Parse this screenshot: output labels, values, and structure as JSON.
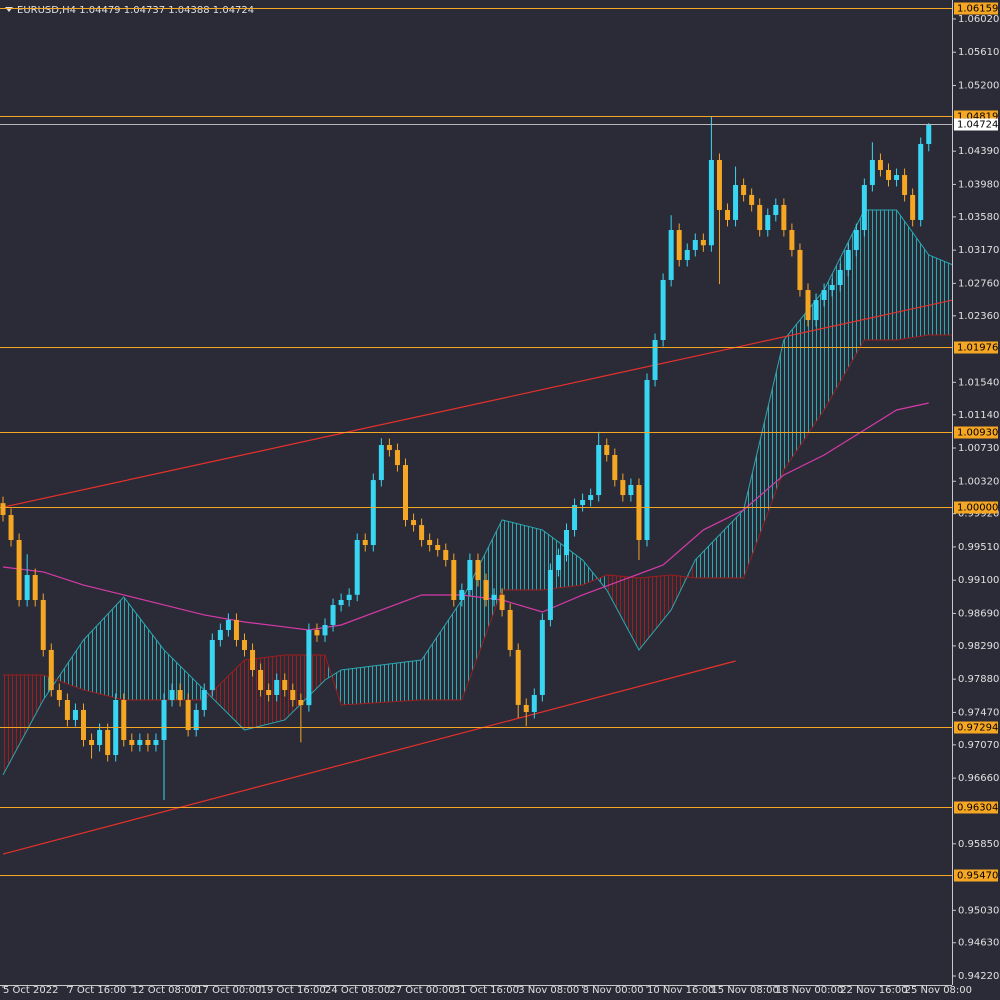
{
  "chart_data": {
    "type": "candlestick",
    "title": "EURUSD,H4  1.04479 1.04737 1.04388 1.04724",
    "up_color": "#38d6f2",
    "down_color": "#f5a623",
    "ylim": [
      0.94109,
      1.06254
    ],
    "yticks": [
      {
        "value": 1.0602,
        "label": "1.06020"
      },
      {
        "value": 1.0561,
        "label": "1.05610"
      },
      {
        "value": 1.052,
        "label": "1.05200"
      },
      {
        "value": 1.0439,
        "label": "1.04390"
      },
      {
        "value": 1.0398,
        "label": "1.03980"
      },
      {
        "value": 1.0358,
        "label": "1.03580"
      },
      {
        "value": 1.0317,
        "label": "1.03170"
      },
      {
        "value": 1.0276,
        "label": "1.02760"
      },
      {
        "value": 1.0236,
        "label": "1.02360"
      },
      {
        "value": 1.0154,
        "label": "1.01540"
      },
      {
        "value": 1.0114,
        "label": "1.01140"
      },
      {
        "value": 1.0073,
        "label": "1.00730"
      },
      {
        "value": 1.0032,
        "label": "1.00320"
      },
      {
        "value": 0.9992,
        "label": "0.99920"
      },
      {
        "value": 0.9951,
        "label": "0.99510"
      },
      {
        "value": 0.991,
        "label": "0.99100"
      },
      {
        "value": 0.9869,
        "label": "0.98690"
      },
      {
        "value": 0.9829,
        "label": "0.98290"
      },
      {
        "value": 0.9788,
        "label": "0.97880"
      },
      {
        "value": 0.9747,
        "label": "0.97470"
      },
      {
        "value": 0.9707,
        "label": "0.97070"
      },
      {
        "value": 0.9666,
        "label": "0.96660"
      },
      {
        "value": 0.9585,
        "label": "0.95850"
      },
      {
        "value": 0.9503,
        "label": "0.95030"
      },
      {
        "value": 0.9463,
        "label": "0.94630"
      },
      {
        "value": 0.9422,
        "label": "0.94220"
      }
    ],
    "levels": [
      {
        "value": 1.06159,
        "label": "1.06159"
      },
      {
        "value": 1.04819,
        "label": "1.04819"
      },
      {
        "value": 1.01976,
        "label": "1.01976"
      },
      {
        "value": 1.0093,
        "label": "1.00930"
      },
      {
        "value": 1.0,
        "label": "1.00000"
      },
      {
        "value": 0.97294,
        "label": "0.97294"
      },
      {
        "value": 0.96304,
        "label": "0.96304"
      },
      {
        "value": 0.9547,
        "label": "0.95470"
      }
    ],
    "level_color": "#f5a623",
    "bid": {
      "value": 1.04724,
      "label": "1.04724"
    },
    "categories": [
      "5 Oct 2022",
      null,
      null,
      null,
      null,
      null,
      null,
      null,
      "7 Oct 16:00",
      null,
      null,
      null,
      null,
      null,
      null,
      null,
      "12 Oct 08:00",
      null,
      null,
      null,
      null,
      null,
      null,
      null,
      "17 Oct 00:00",
      null,
      null,
      null,
      null,
      null,
      null,
      null,
      "19 Oct 16:00",
      null,
      null,
      null,
      null,
      null,
      null,
      null,
      "24 Oct 08:00",
      null,
      null,
      null,
      null,
      null,
      null,
      null,
      "27 Oct 00:00",
      null,
      null,
      null,
      null,
      null,
      null,
      null,
      "31 Oct 16:00",
      null,
      null,
      null,
      null,
      null,
      null,
      null,
      "3 Nov 08:00",
      null,
      null,
      null,
      null,
      null,
      null,
      null,
      "8 Nov 00:00",
      null,
      null,
      null,
      null,
      null,
      null,
      null,
      "10 Nov 16:00",
      null,
      null,
      null,
      null,
      null,
      null,
      null,
      "15 Nov 08:00",
      null,
      null,
      null,
      null,
      null,
      null,
      null,
      "18 Nov 00:00",
      null,
      null,
      null,
      null,
      null,
      null,
      null,
      "22 Nov 16:00",
      null,
      null,
      null,
      null,
      null,
      null,
      null,
      "25 Nov 08:00",
      null,
      null,
      null
    ],
    "open": [
      1.0005,
      0.99904,
      0.99596,
      0.98856,
      0.99164,
      0.98856,
      0.9824,
      0.97746,
      0.97623,
      0.97377,
      0.975,
      0.9713,
      0.97068,
      0.97253,
      0.96945,
      0.97623,
      0.9713,
      0.97068,
      0.9713,
      0.97068,
      0.9713,
      0.97623,
      0.97746,
      0.97623,
      0.97253,
      0.975,
      0.97746,
      0.98363,
      0.98486,
      0.9861,
      0.98363,
      0.9824,
      0.97993,
      0.97746,
      0.97685,
      0.9787,
      0.97746,
      0.97623,
      0.9756,
      0.98486,
      0.9842,
      0.98548,
      0.98794,
      0.98856,
      0.9892,
      0.99596,
      0.99534,
      1.00335,
      1.00767,
      1.00705,
      1.0052,
      0.99842,
      0.9978,
      0.99596,
      0.99534,
      0.99472,
      0.99349,
      0.98856,
      0.98979,
      0.99349,
      0.99102,
      0.98856,
      0.9892,
      0.98733,
      0.9824,
      0.97562,
      0.97475,
      0.97685,
      0.9861,
      0.99226,
      0.9941,
      0.99719,
      1.00027,
      1.00089,
      1.0015,
      1.00767,
      1.00644,
      1.00335,
      1.0015,
      1.00274,
      0.99596,
      1.01569,
      1.02062,
      1.02802,
      1.03418,
      1.03048,
      1.03172,
      1.03295,
      1.0323,
      1.04281,
      1.03665,
      1.03542,
      1.03973,
      1.0385,
      1.03727,
      1.03418,
      1.03603,
      1.03727,
      1.03418,
      1.03172,
      1.02678,
      1.02308,
      1.02555,
      1.02678,
      1.0274,
      1.02925,
      1.03172,
      1.03418,
      1.03973,
      1.04281,
      1.04158,
      1.04035,
      1.04096,
      1.0385,
      1.03542,
      1.04479
    ],
    "high": [
      1.0013,
      0.99984,
      0.99676,
      0.9942,
      0.99244,
      0.98936,
      0.9832,
      0.97826,
      0.97703,
      0.9758,
      0.9758,
      0.9721,
      0.97333,
      0.97333,
      0.97703,
      0.97703,
      0.9721,
      0.9721,
      0.9721,
      0.9721,
      0.97703,
      0.97826,
      0.97826,
      0.97703,
      0.9758,
      0.97826,
      0.98443,
      0.98566,
      0.9869,
      0.9869,
      0.98443,
      0.9832,
      0.98073,
      0.97826,
      0.9795,
      0.9795,
      0.97826,
      0.97703,
      0.98566,
      0.98566,
      0.98628,
      0.98874,
      0.98936,
      0.99,
      0.99676,
      0.99676,
      1.00415,
      1.0085,
      1.00847,
      1.00785,
      1.006,
      0.99922,
      0.9986,
      0.99676,
      0.99614,
      0.99552,
      0.99429,
      0.99059,
      0.99429,
      0.99429,
      0.99182,
      0.99,
      0.99,
      0.98813,
      0.9832,
      0.97642,
      0.97765,
      0.9869,
      0.99306,
      0.9949,
      0.99799,
      1.00107,
      1.00169,
      1.0023,
      1.0093,
      1.00847,
      1.00724,
      1.00415,
      1.00354,
      1.00354,
      1.01649,
      1.02142,
      1.02882,
      1.036,
      1.03498,
      1.03252,
      1.03375,
      1.03375,
      1.04812,
      1.04361,
      1.03745,
      1.042,
      1.04053,
      1.0393,
      1.03807,
      1.03683,
      1.03807,
      1.03807,
      1.03498,
      1.03252,
      1.02758,
      1.02635,
      1.02758,
      1.0282,
      1.03005,
      1.03252,
      1.03498,
      1.04053,
      1.045,
      1.04361,
      1.04238,
      1.04176,
      1.04176,
      1.0393,
      1.04559,
      1.04737
    ],
    "low": [
      0.99824,
      0.99516,
      0.98776,
      0.98776,
      0.98776,
      0.9816,
      0.97666,
      0.97543,
      0.97297,
      0.97297,
      0.9705,
      0.969,
      0.96988,
      0.96865,
      0.96865,
      0.9705,
      0.96988,
      0.96988,
      0.96988,
      0.96988,
      0.9639,
      0.97543,
      0.97543,
      0.97173,
      0.97173,
      0.9742,
      0.97666,
      0.98283,
      0.98406,
      0.98283,
      0.9816,
      0.97913,
      0.97666,
      0.97605,
      0.97605,
      0.97666,
      0.97543,
      0.971,
      0.9748,
      0.9834,
      0.9834,
      0.98468,
      0.98714,
      0.98776,
      0.9884,
      0.99454,
      0.99454,
      1.00255,
      1.00625,
      1.0044,
      0.99762,
      0.997,
      0.99516,
      0.99454,
      0.99392,
      0.99269,
      0.98776,
      0.98776,
      0.98899,
      0.99022,
      0.98776,
      0.98776,
      0.98653,
      0.9816,
      0.974,
      0.973,
      0.97395,
      0.97605,
      0.9853,
      0.99146,
      0.9933,
      0.99639,
      0.99947,
      1.00009,
      1.0007,
      1.00564,
      1.00255,
      1.0007,
      1.0007,
      0.9935,
      0.99516,
      1.01489,
      1.01982,
      1.02722,
      1.02968,
      1.02968,
      1.03092,
      1.0315,
      1.0315,
      1.0275,
      1.03462,
      1.03462,
      1.0377,
      1.03647,
      1.03338,
      1.03338,
      1.03523,
      1.03338,
      1.03092,
      1.02598,
      1.02228,
      1.02228,
      1.02475,
      1.02598,
      1.0266,
      1.02845,
      1.03092,
      1.03338,
      1.03893,
      1.04078,
      1.03955,
      1.03955,
      1.0377,
      1.03462,
      1.03462,
      1.04388
    ],
    "close": [
      0.99904,
      0.99596,
      0.98856,
      0.99164,
      0.98856,
      0.9824,
      0.97746,
      0.97623,
      0.97377,
      0.975,
      0.9713,
      0.97068,
      0.97253,
      0.96945,
      0.97623,
      0.9713,
      0.97068,
      0.9713,
      0.97068,
      0.9713,
      0.97623,
      0.97746,
      0.97623,
      0.97253,
      0.975,
      0.97746,
      0.98363,
      0.98486,
      0.9861,
      0.98363,
      0.9824,
      0.97993,
      0.97746,
      0.97685,
      0.9787,
      0.97746,
      0.97623,
      0.9756,
      0.98486,
      0.9842,
      0.98548,
      0.98794,
      0.98856,
      0.9892,
      0.99596,
      0.99534,
      1.00335,
      1.00767,
      1.00705,
      1.0052,
      0.99842,
      0.9978,
      0.99596,
      0.99534,
      0.99472,
      0.99349,
      0.98856,
      0.98979,
      0.99349,
      0.99102,
      0.98856,
      0.9892,
      0.98733,
      0.9824,
      0.97562,
      0.97475,
      0.97685,
      0.9861,
      0.99226,
      0.9941,
      0.99719,
      1.00027,
      1.00089,
      1.0015,
      1.00767,
      1.00644,
      1.00335,
      1.0015,
      1.00274,
      0.99596,
      1.01569,
      1.02062,
      1.02802,
      1.03418,
      1.03048,
      1.03172,
      1.03295,
      1.0323,
      1.04281,
      1.03665,
      1.03542,
      1.03973,
      1.0385,
      1.03727,
      1.03418,
      1.03603,
      1.03727,
      1.03418,
      1.03172,
      1.02678,
      1.02308,
      1.02555,
      1.02678,
      1.0274,
      1.02925,
      1.03172,
      1.03418,
      1.03973,
      1.04281,
      1.04158,
      1.04035,
      1.04096,
      1.0385,
      1.03542,
      1.04479,
      1.04724
    ],
    "cloud": {
      "x": [
        0,
        5,
        10,
        15,
        20,
        25,
        30,
        35,
        40,
        42,
        52,
        57,
        62,
        67,
        72,
        75,
        79,
        83,
        86,
        92,
        97,
        102,
        107,
        111,
        115,
        118
      ],
      "span_a": [
        0.96699,
        0.97623,
        0.98363,
        0.98893,
        0.9824,
        0.97747,
        0.97253,
        0.97377,
        0.9787,
        0.97993,
        0.98116,
        0.98856,
        0.99843,
        0.9972,
        0.9935,
        0.9898,
        0.9824,
        0.98733,
        0.9935,
        0.99966,
        1.02062,
        1.02679,
        1.03665,
        1.03665,
        1.0311,
        1.02987
      ],
      "span_b": [
        0.97932,
        0.97932,
        0.97747,
        0.97623,
        0.97623,
        0.97623,
        0.98116,
        0.98178,
        0.98178,
        0.97562,
        0.97623,
        0.97623,
        0.9898,
        0.9898,
        0.99041,
        0.99165,
        0.99128,
        0.99165,
        0.99128,
        0.99128,
        1.00459,
        1.01199,
        1.02062,
        1.02062,
        1.02124,
        1.02124
      ]
    },
    "moving_average": {
      "color": "#d63aa8",
      "x": [
        0,
        5,
        10,
        15,
        20,
        25,
        30,
        35,
        38,
        42,
        47,
        52,
        57,
        62,
        67,
        72,
        77,
        82,
        87,
        92,
        97,
        102,
        107,
        111,
        115
      ],
      "values": [
        0.99263,
        0.99202,
        0.9904,
        0.98918,
        0.98795,
        0.98672,
        0.98585,
        0.98524,
        0.98486,
        0.98548,
        0.98733,
        0.98918,
        0.98918,
        0.98856,
        0.98708,
        0.98918,
        0.99103,
        0.99288,
        0.9972,
        0.99966,
        1.00398,
        1.00644,
        1.00952,
        1.01199,
        1.01285
      ]
    },
    "trend_lines": [
      {
        "color": "#e8302b",
        "x": [
          0,
          118
        ],
        "values": [
          1.0,
          1.02555
        ]
      },
      {
        "color": "#e8302b",
        "x": [
          0,
          91
        ],
        "values": [
          0.95724,
          0.98104
        ]
      }
    ]
  }
}
